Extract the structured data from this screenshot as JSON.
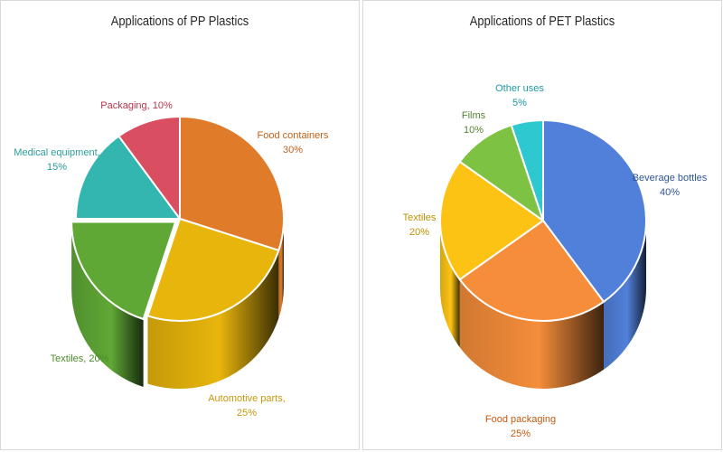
{
  "chart_data": [
    {
      "type": "pie",
      "style": "3d-cylinder",
      "title": "Applications of PP  Plastics",
      "slices": [
        {
          "name": "Food containers",
          "value": 30,
          "label_lines": [
            "Food containers",
            "30%"
          ],
          "color": "#E07B2A",
          "label_color": "#C0621A"
        },
        {
          "name": "Automotive parts",
          "value": 25,
          "label_lines": [
            "Automotive parts,",
            "25%"
          ],
          "color": "#E8B50C",
          "label_color": "#C9960A"
        },
        {
          "name": "Textiles",
          "value": 20,
          "label_lines": [
            "Textiles, 20%"
          ],
          "color": "#5FA836",
          "label_color": "#4A8C2A"
        },
        {
          "name": "Medical equipment",
          "value": 15,
          "label_lines": [
            "Medical equipment,",
            "15%"
          ],
          "color": "#33B5B0",
          "label_color": "#2A9D98"
        },
        {
          "name": "Packaging",
          "value": 10,
          "label_lines": [
            "Packaging, 10%"
          ],
          "color": "#D94E61",
          "label_color": "#B8364A"
        }
      ]
    },
    {
      "type": "pie",
      "style": "3d-cylinder",
      "title": "Applications of PET  Plastics",
      "slices": [
        {
          "name": "Beverage bottles",
          "value": 40,
          "label_lines": [
            "Beverage bottles",
            "40%"
          ],
          "color": "#5180DA",
          "label_color": "#2F5597"
        },
        {
          "name": "Food packaging",
          "value": 25,
          "label_lines": [
            "Food packaging",
            "25%"
          ],
          "color": "#F58D3A",
          "label_color": "#C55A11"
        },
        {
          "name": "Textiles",
          "value": 20,
          "label_lines": [
            "Textiles",
            "20%"
          ],
          "color": "#FCC314",
          "label_color": "#BF9000"
        },
        {
          "name": "Films",
          "value": 10,
          "label_lines": [
            "Films",
            "10%"
          ],
          "color": "#7DC242",
          "label_color": "#548235"
        },
        {
          "name": "Other uses",
          "value": 5,
          "label_lines": [
            "Other uses",
            "5%"
          ],
          "color": "#2EC8D0",
          "label_color": "#1E9AA6"
        }
      ]
    }
  ]
}
